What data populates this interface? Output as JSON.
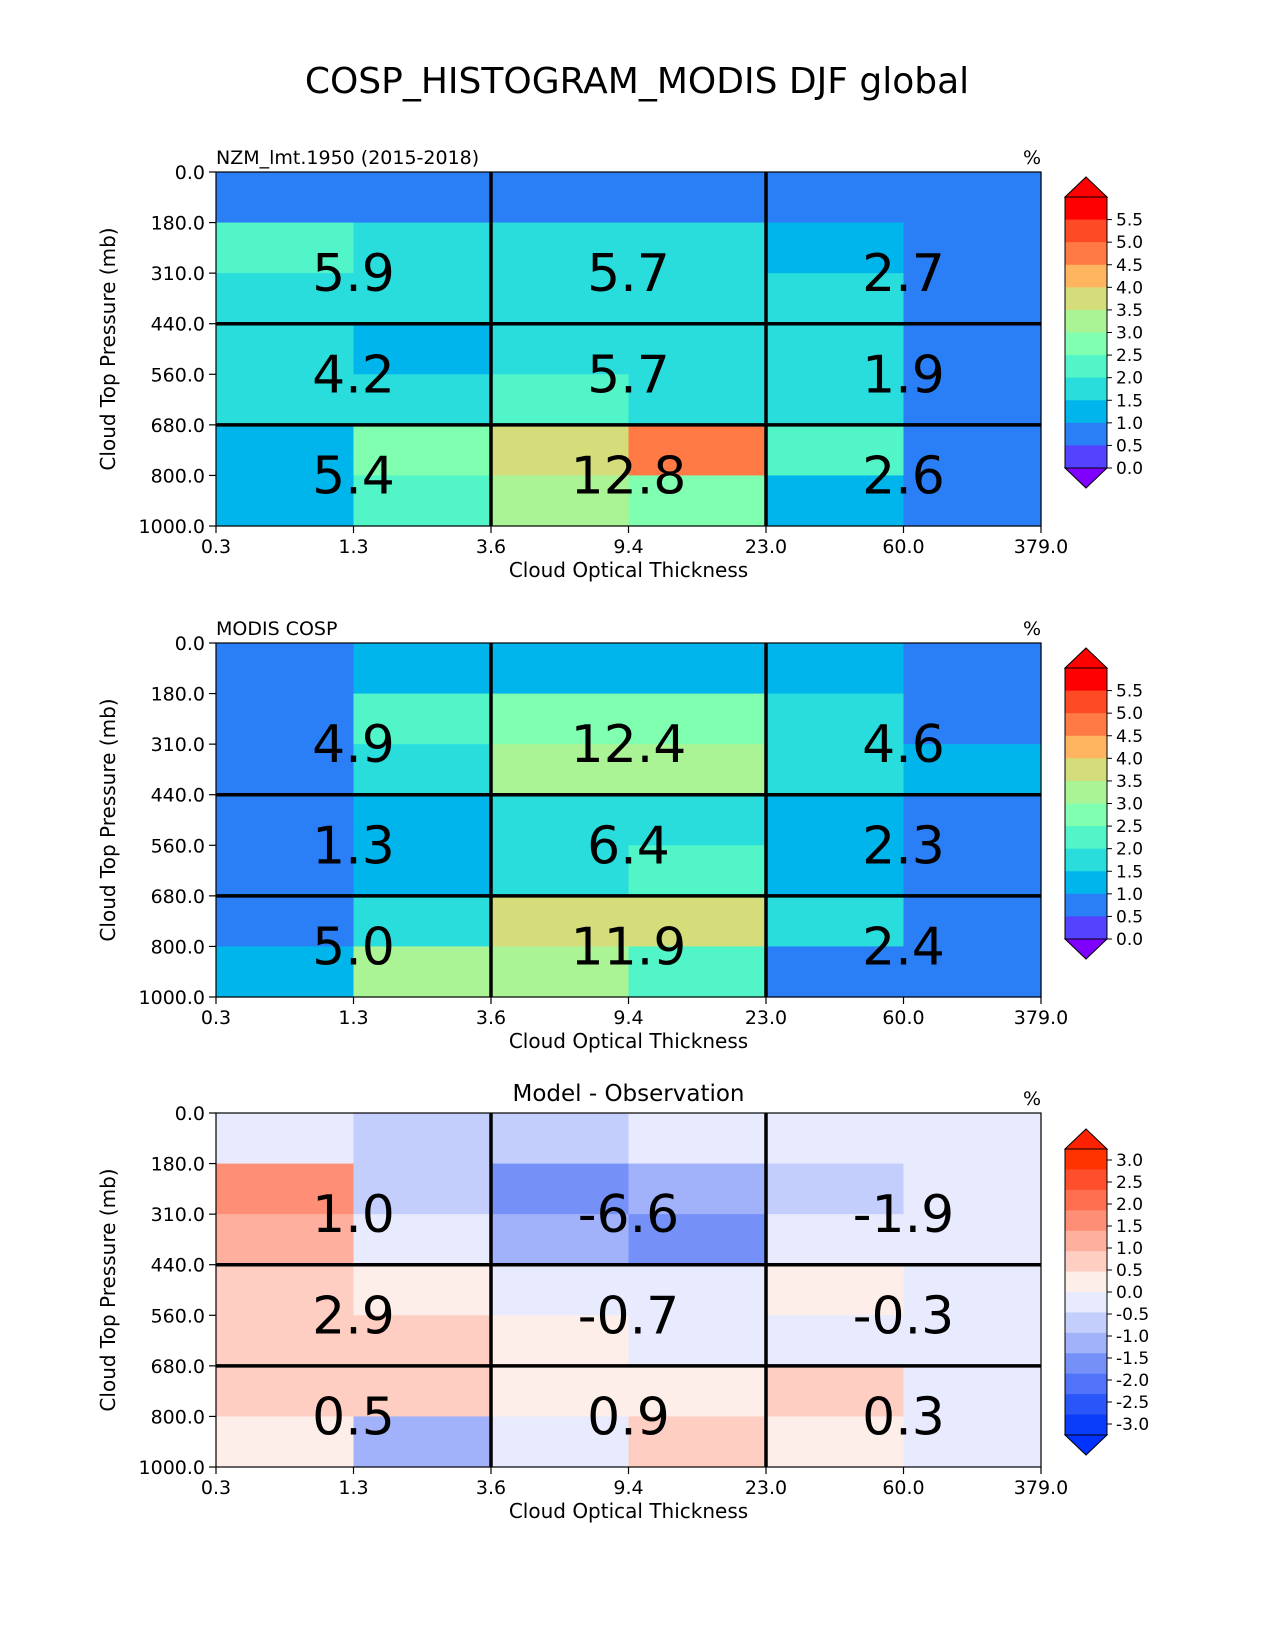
{
  "figure": {
    "title": "COSP_HISTOGRAM_MODIS DJF global"
  },
  "chart_data": [
    {
      "type": "heatmap",
      "name": "test",
      "left_title": "NZM_lmt.1950 (2015-2018)",
      "center_title": "",
      "units": "%",
      "xlabel": "Cloud Optical Thickness",
      "ylabel": "Cloud Top Pressure (mb)",
      "x_ticks": [
        "0.3",
        "1.3",
        "3.6",
        "9.4",
        "23.0",
        "60.0",
        "379.0"
      ],
      "y_ticks": [
        "0.0",
        "180.0",
        "310.0",
        "440.0",
        "560.0",
        "680.0",
        "800.0",
        "1000.0"
      ],
      "cells": [
        [
          0.3,
          0.3,
          0.3,
          0.3,
          0.3,
          0.3
        ],
        [
          2.1,
          1.4,
          1.4,
          1.4,
          0.9,
          0.3
        ],
        [
          1.4,
          1.4,
          1.4,
          1.4,
          1.4,
          0.3
        ],
        [
          1.4,
          0.9,
          1.4,
          1.4,
          1.4,
          0.3
        ],
        [
          1.4,
          1.4,
          2.1,
          1.4,
          1.4,
          0.3
        ],
        [
          0.9,
          2.3,
          3.3,
          4.3,
          2.1,
          0.3
        ],
        [
          0.9,
          2.1,
          2.8,
          2.3,
          0.9,
          0.3
        ]
      ],
      "totals": [
        [
          "5.9",
          "5.7",
          "2.7"
        ],
        [
          "4.2",
          "5.7",
          "1.9"
        ],
        [
          "5.4",
          "12.8",
          "2.6"
        ]
      ],
      "colorbar": {
        "ticks": [
          "5.5",
          "5.0",
          "4.5",
          "4.0",
          "3.5",
          "3.0",
          "2.5",
          "2.0",
          "1.5",
          "1.0",
          "0.5",
          "0.0"
        ],
        "colors": [
          "#ff0000",
          "#ff4a26",
          "#ff7a45",
          "#ffb560",
          "#d5dd7a",
          "#abf496",
          "#80ffb0",
          "#52f5c7",
          "#2adddd",
          "#00b5eb",
          "#2b7ff6",
          "#5542ff"
        ],
        "extend_max": "#ff0000",
        "extend_min": "#8000ff",
        "vmin": 0.0,
        "vmax": 5.5
      }
    },
    {
      "type": "heatmap",
      "name": "reference",
      "left_title": "MODIS COSP",
      "center_title": "",
      "units": "%",
      "xlabel": "Cloud Optical Thickness",
      "ylabel": "Cloud Top Pressure (mb)",
      "x_ticks": [
        "0.3",
        "1.3",
        "3.6",
        "9.4",
        "23.0",
        "60.0",
        "379.0"
      ],
      "y_ticks": [
        "0.0",
        "180.0",
        "310.0",
        "440.0",
        "560.0",
        "680.0",
        "800.0",
        "1000.0"
      ],
      "cells": [
        [
          0.3,
          0.9,
          0.9,
          0.9,
          0.9,
          0.3
        ],
        [
          0.3,
          2.1,
          2.3,
          2.3,
          1.4,
          0.3
        ],
        [
          0.3,
          1.4,
          2.8,
          2.8,
          1.4,
          0.9
        ],
        [
          0.3,
          0.9,
          1.4,
          1.4,
          0.9,
          0.3
        ],
        [
          0.3,
          0.9,
          1.4,
          2.1,
          0.9,
          0.3
        ],
        [
          0.3,
          1.4,
          3.3,
          3.3,
          1.4,
          0.3
        ],
        [
          0.9,
          2.8,
          2.8,
          2.1,
          0.3,
          0.3
        ]
      ],
      "totals": [
        [
          "4.9",
          "12.4",
          "4.6"
        ],
        [
          "1.3",
          "6.4",
          "2.3"
        ],
        [
          "5.0",
          "11.9",
          "2.4"
        ]
      ],
      "colorbar": {
        "ticks": [
          "5.5",
          "5.0",
          "4.5",
          "4.0",
          "3.5",
          "3.0",
          "2.5",
          "2.0",
          "1.5",
          "1.0",
          "0.5",
          "0.0"
        ],
        "colors": [
          "#ff0000",
          "#ff4a26",
          "#ff7a45",
          "#ffb560",
          "#d5dd7a",
          "#abf496",
          "#80ffb0",
          "#52f5c7",
          "#2adddd",
          "#00b5eb",
          "#2b7ff6",
          "#5542ff"
        ],
        "extend_max": "#ff0000",
        "extend_min": "#8000ff",
        "vmin": 0.0,
        "vmax": 5.5
      }
    },
    {
      "type": "heatmap",
      "name": "difference",
      "left_title": "",
      "center_title": "Model - Observation",
      "units": "%",
      "xlabel": "Cloud Optical Thickness",
      "ylabel": "Cloud Top Pressure (mb)",
      "x_ticks": [
        "0.3",
        "1.3",
        "3.6",
        "9.4",
        "23.0",
        "60.0",
        "379.0"
      ],
      "y_ticks": [
        "0.0",
        "180.0",
        "310.0",
        "440.0",
        "560.0",
        "680.0",
        "800.0",
        "1000.0"
      ],
      "cells": [
        [
          -0.2,
          -0.7,
          -0.7,
          -0.2,
          -0.2,
          -0.2
        ],
        [
          1.7,
          -0.7,
          -1.7,
          -1.3,
          -0.7,
          -0.2
        ],
        [
          1.3,
          -0.2,
          -1.3,
          -1.7,
          -0.2,
          -0.2
        ],
        [
          0.7,
          0.2,
          -0.2,
          -0.2,
          0.2,
          -0.2
        ],
        [
          0.7,
          0.7,
          0.2,
          -0.2,
          -0.2,
          -0.2
        ],
        [
          0.7,
          0.7,
          0.2,
          0.2,
          0.7,
          -0.2
        ],
        [
          0.2,
          -1.3,
          -0.2,
          0.7,
          0.2,
          -0.2
        ]
      ],
      "totals": [
        [
          "1.0",
          "-6.6",
          "-1.9"
        ],
        [
          "2.9",
          "-0.7",
          "-0.3"
        ],
        [
          "0.5",
          "0.9",
          "0.3"
        ]
      ],
      "colorbar": {
        "ticks": [
          "3.0",
          "2.5",
          "2.0",
          "1.5",
          "1.0",
          "0.5",
          "0.0",
          "-0.5",
          "-1.0",
          "-1.5",
          "-2.0",
          "-2.5",
          "-3.0"
        ],
        "colors": [
          "#ff3300",
          "#ff4e2c",
          "#ff6e4f",
          "#ff8e77",
          "#ffaf9d",
          "#ffcec3",
          "#fdeee9",
          "#e7ebfd",
          "#c3cefd",
          "#a1b1fa",
          "#7591f8",
          "#5073f8",
          "#2a55f9",
          "#0a3dfa"
        ],
        "extend_max": "#ff2200",
        "extend_min": "#0033ff",
        "vmin": -3.0,
        "vmax": 3.0
      }
    }
  ]
}
